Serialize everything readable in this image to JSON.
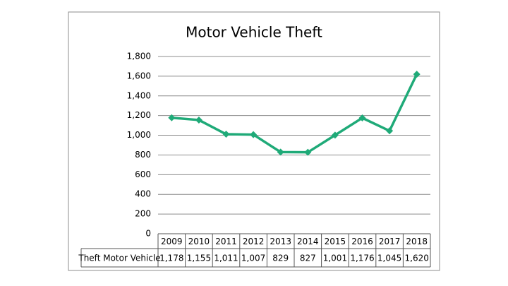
{
  "chart_data": {
    "type": "line",
    "title": "Motor Vehicle Theft",
    "categories": [
      "2009",
      "2010",
      "2011",
      "2012",
      "2013",
      "2014",
      "2015",
      "2016",
      "2017",
      "2018"
    ],
    "series": [
      {
        "name": "Theft Motor Vehicle",
        "color": "#1faa78",
        "values": [
          1178,
          1155,
          1011,
          1007,
          829,
          827,
          1001,
          1176,
          1045,
          1620
        ],
        "value_labels": [
          "1,178",
          "1,155",
          "1,011",
          "1,007",
          "829",
          "827",
          "1,001",
          "1,176",
          "1,045",
          "1,620"
        ]
      }
    ],
    "ylim": [
      0,
      1800
    ],
    "yticks": [
      0,
      200,
      400,
      600,
      800,
      {
        "value": 1000,
        "label": "1,000"
      },
      {
        "value": 1200,
        "label": "1,200"
      },
      {
        "value": 1400,
        "label": "1,400"
      },
      {
        "value": 1600,
        "label": "1,600"
      },
      {
        "value": 1800,
        "label": "1,800"
      }
    ],
    "grid": true
  }
}
